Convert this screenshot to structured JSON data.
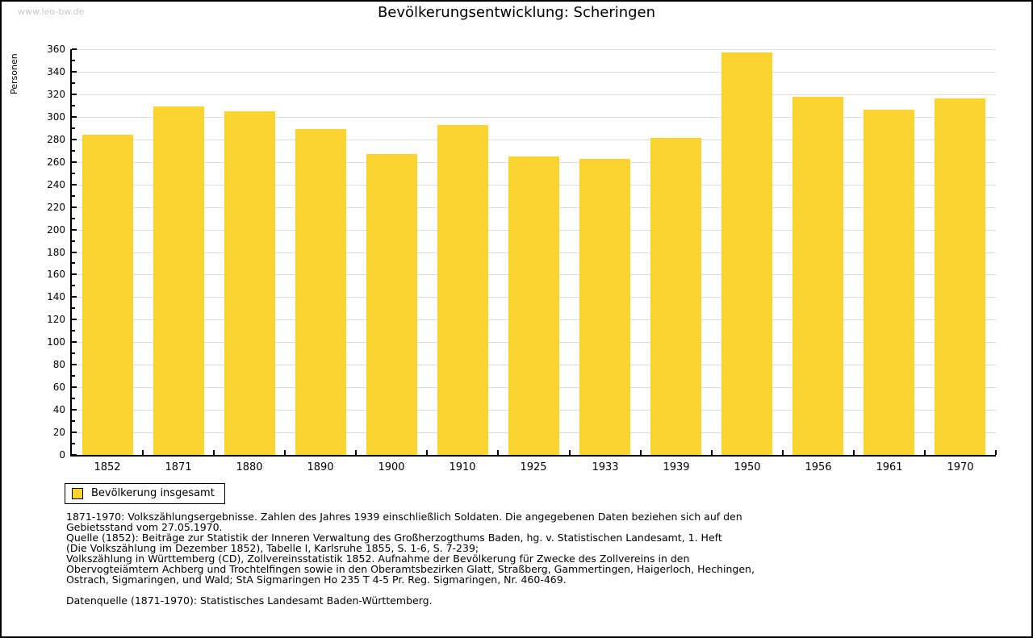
{
  "watermark": "www.leo-bw.de",
  "title": "Bevölkerungsentwicklung: Scheringen",
  "colors": {
    "bar": "#fcd42f",
    "grid": "#dcdcdc",
    "axis": "#000000",
    "watermark": "#c9c9c9"
  },
  "chart_data": {
    "type": "bar",
    "title": "Bevölkerungsentwicklung: Scheringen",
    "xlabel": "",
    "ylabel": "Personen",
    "categories": [
      "1852",
      "1871",
      "1880",
      "1890",
      "1900",
      "1910",
      "1925",
      "1933",
      "1939",
      "1950",
      "1956",
      "1961",
      "1970"
    ],
    "values": [
      284,
      309,
      305,
      289,
      267,
      293,
      265,
      263,
      281,
      357,
      318,
      306,
      316
    ],
    "series_name": "Bevölkerung insgesamt",
    "ylim": [
      0,
      360
    ],
    "ytick_step": 20,
    "minor_tick_step": 10,
    "grid": true,
    "legend_position": "bottom-left"
  },
  "legend": {
    "label": "Bevölkerung insgesamt"
  },
  "footer": {
    "note_lines": [
      "1871-1970: Volkszählungsergebnisse. Zahlen des Jahres 1939 einschließlich Soldaten. Die angegebenen Daten beziehen sich auf den",
      "Gebietsstand vom 27.05.1970.",
      "Quelle (1852): Beiträge zur Statistik der Inneren Verwaltung des Großherzogthums Baden, hg. v. Statistischen Landesamt, 1. Heft",
      "(Die Volkszählung im Dezember 1852), Tabelle I, Karlsruhe 1855, S. 1-6, S. 7-239;",
      "Volkszählung in Württemberg (CD), Zollvereinsstatistik 1852. Aufnahme der Bevölkerung für Zwecke des Zollvereins in den",
      "Obervogteiämtern Achberg und Trochtelfingen sowie in den Oberamtsbezirken Glatt, Straßberg, Gammertingen, Haigerloch, Hechingen,",
      "Ostrach, Sigmaringen, und Wald; StA Sigmaringen Ho 235 T 4-5 Pr. Reg. Sigmaringen, Nr. 460-469."
    ],
    "datasource": "Datenquelle (1871-1970): Statistisches Landesamt Baden-Württemberg."
  }
}
